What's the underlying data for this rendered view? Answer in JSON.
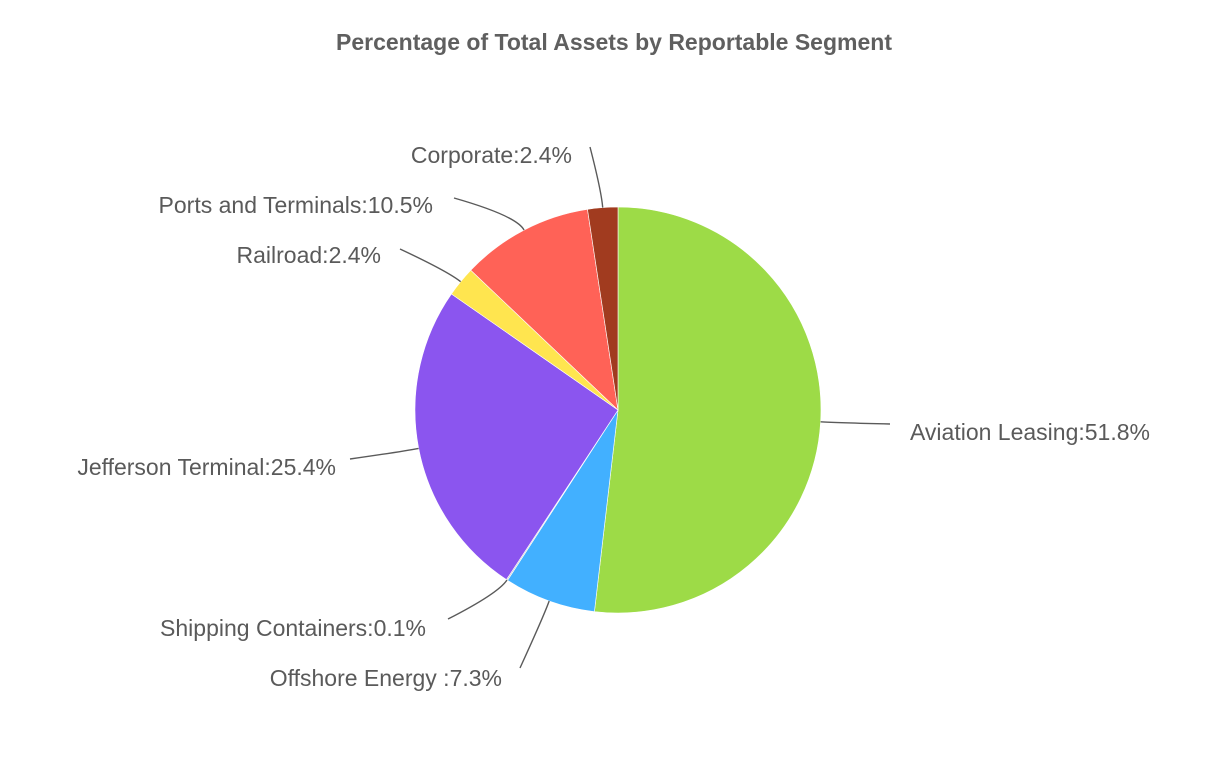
{
  "chart_data": {
    "type": "pie",
    "title": "Percentage of Total Assets by Reportable Segment",
    "start_angle_deg": 0,
    "direction": "clockwise",
    "slices": [
      {
        "key": "aviation-leasing",
        "label": "Aviation Leasing:51.8%",
        "value": 51.8,
        "color": "#9ddb47"
      },
      {
        "key": "offshore-energy",
        "label": "Offshore Energy :7.3%",
        "value": 7.3,
        "color": "#42b0ff"
      },
      {
        "key": "shipping-containers",
        "label": "Shipping Containers:0.1%",
        "value": 0.1,
        "color": "#c9c9c9"
      },
      {
        "key": "jefferson-terminal",
        "label": "Jefferson Terminal:25.4%",
        "value": 25.4,
        "color": "#8b55ef"
      },
      {
        "key": "railroad",
        "label": "Railroad:2.4%",
        "value": 2.4,
        "color": "#ffe54f"
      },
      {
        "key": "ports-and-terminals",
        "label": "Ports and Terminals:10.5%",
        "value": 10.5,
        "color": "#ff6257"
      },
      {
        "key": "corporate",
        "label": "Corporate:2.4%",
        "value": 2.4,
        "color": "#a13b1f"
      }
    ]
  }
}
